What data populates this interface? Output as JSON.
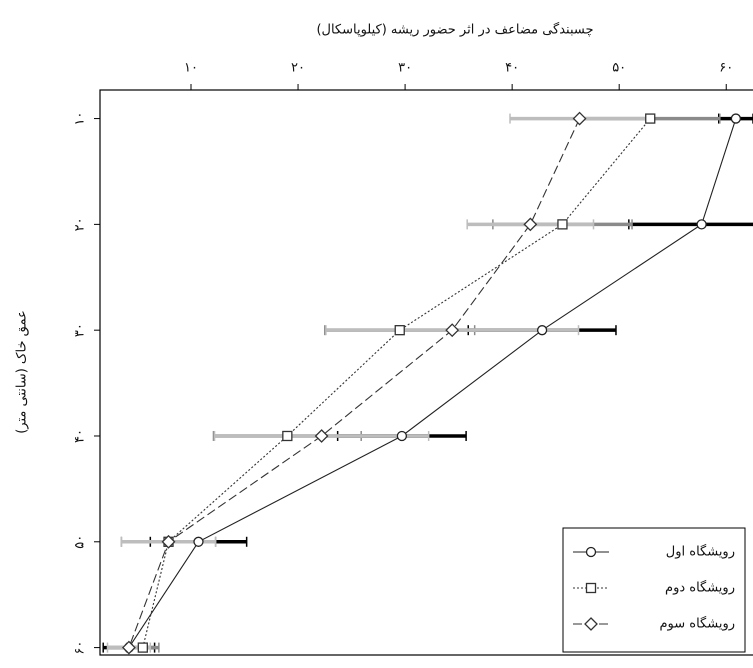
{
  "chart_data": {
    "type": "line",
    "title": "چسبندگی مضاعف در اثر حضور ریشه (کیلوپاسکال)",
    "y_label": "عمق خاک (سانتی متر)",
    "y": [
      10,
      20,
      30,
      40,
      50,
      60
    ],
    "series": [
      {
        "name": "رویشگاه اول",
        "color": "#222222",
        "error_color": "#000000",
        "dash": "solid",
        "marker": "circle",
        "values": [
          60.9,
          57.7,
          42.8,
          29.7,
          10.7,
          4.2
        ],
        "errors": [
          1.6,
          6.8,
          6.9,
          6.0,
          4.5,
          2.4
        ]
      },
      {
        "name": "رویشگاه دوم",
        "color": "#333333",
        "error_color": "#8a8a8a",
        "dash": "dotted",
        "marker": "square",
        "values": [
          52.9,
          44.7,
          29.5,
          19.0,
          7.9,
          5.5
        ],
        "errors": [
          6.5,
          6.5,
          7.0,
          6.9,
          4.4,
          1.5
        ]
      },
      {
        "name": "رویشگاه سوم",
        "color": "#333333",
        "error_color": "#bdbdbd",
        "dash": "dashed",
        "marker": "diamond",
        "values": [
          46.3,
          41.7,
          34.4,
          22.2,
          7.9,
          4.2
        ],
        "errors": [
          6.5,
          5.9,
          11.8,
          10.0,
          4.4,
          2.0
        ]
      }
    ],
    "xlim": [
      1.5,
      62.5
    ],
    "xticks": [
      {
        "value": 10,
        "label": "۱۰"
      },
      {
        "value": 20,
        "label": "۲۰"
      },
      {
        "value": 30,
        "label": "۳۰"
      },
      {
        "value": 40,
        "label": "۴۰"
      },
      {
        "value": 50,
        "label": "۵۰"
      },
      {
        "value": 60,
        "label": "۶۰"
      }
    ],
    "ylim": [
      7.3,
      60.7
    ],
    "yticks": [
      {
        "value": 10,
        "label": "۱۰"
      },
      {
        "value": 20,
        "label": "۲۰"
      },
      {
        "value": 30,
        "label": "۳۰"
      },
      {
        "value": 40,
        "label": "۴۰"
      },
      {
        "value": 50,
        "label": "۵۰"
      },
      {
        "value": 60,
        "label": "۶۰"
      }
    ],
    "x_axis_position": "top",
    "y_inverted": true,
    "legend": "bottom-right"
  }
}
